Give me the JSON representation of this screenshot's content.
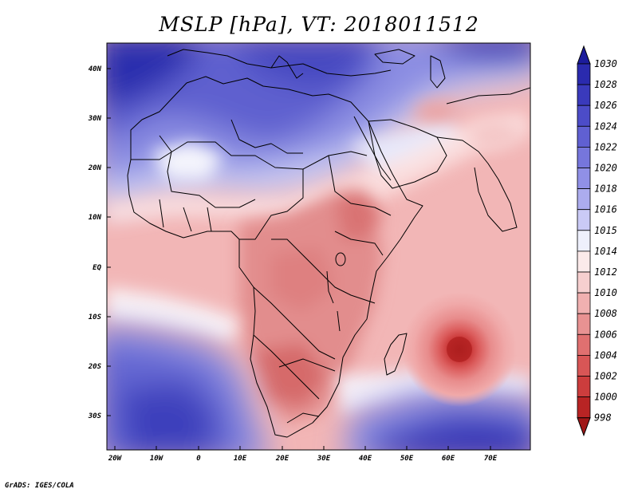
{
  "title": "MSLP [hPa], VT: 2018011512",
  "credit": "GrADS: IGES/COLA",
  "map": {
    "type": "filled-contour-map",
    "variable": "MSLP",
    "units": "hPa",
    "valid_time": "2018011512",
    "lon_range": [
      -23,
      80
    ],
    "lat_range": [
      -37,
      45
    ],
    "lon_ticks": [
      "20W",
      "10W",
      "0",
      "10E",
      "20E",
      "30E",
      "40E",
      "50E",
      "60E",
      "70E"
    ],
    "lat_ticks": [
      "40N",
      "30N",
      "20N",
      "10N",
      "EQ",
      "10S",
      "20S",
      "30S"
    ],
    "features": {
      "low_center": {
        "lon": 63,
        "lat": -17,
        "approx_hpa": 999
      }
    }
  },
  "colorbar": {
    "levels": [
      "1030",
      "1028",
      "1026",
      "1024",
      "1022",
      "1020",
      "1018",
      "1016",
      "1015",
      "1014",
      "1012",
      "1010",
      "1008",
      "1006",
      "1004",
      "1002",
      "1000",
      "998"
    ],
    "colors": [
      "#1c1c9c",
      "#2a2aae",
      "#3a3abc",
      "#4c4cc8",
      "#6060d2",
      "#7676dc",
      "#9090e6",
      "#acacee",
      "#cacaf6",
      "#eef0fc",
      "#fbeaea",
      "#f6cfcf",
      "#f0b0b0",
      "#e89292",
      "#e07070",
      "#d85656",
      "#cc3d3d",
      "#b82424",
      "#a01818"
    ]
  }
}
